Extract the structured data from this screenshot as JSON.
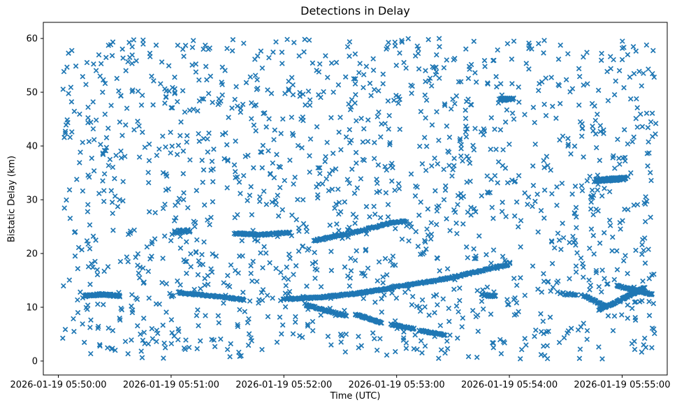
{
  "chart_data": {
    "type": "scatter",
    "title": "Detections in Delay",
    "xlabel": "Time (UTC)",
    "ylabel": "Bistatic Delay (km)",
    "marker": {
      "shape": "x",
      "color": "#1f77b4",
      "half_size_px": 3.2,
      "stroke_px": 1.7
    },
    "frame_color": "#000000",
    "x_axis": {
      "tick_labels": [
        "2026-01-19 05:50:00",
        "2026-01-19 05:51:00",
        "2026-01-19 05:52:00",
        "2026-01-19 05:53:00",
        "2026-01-19 05:54:00",
        "2026-01-19 05:55:00"
      ],
      "tick_seconds": [
        0,
        60,
        120,
        180,
        240,
        300
      ],
      "range_seconds": [
        -8,
        324
      ]
    },
    "y_axis": {
      "tick_labels": [
        "0",
        "10",
        "20",
        "30",
        "40",
        "50",
        "60"
      ],
      "tick_values": [
        0,
        10,
        20,
        30,
        40,
        50,
        60
      ],
      "range_km": [
        -2.6,
        63
      ]
    },
    "noise": {
      "count": 1500,
      "seed": 42,
      "time_range_seconds": [
        2,
        318
      ],
      "delay_range_km": [
        0.4,
        60
      ]
    },
    "tracks": [
      {
        "name": "track-flat-12km-early",
        "points_t_d": [
          [
            14,
            12.15
          ],
          [
            24,
            12.4
          ],
          [
            33,
            12.05
          ]
        ],
        "count": 75,
        "jitter_km": 0.18
      },
      {
        "name": "track-fall-12.7-11.4",
        "points_t_d": [
          [
            64,
            12.7
          ],
          [
            82,
            12.1
          ],
          [
            99,
            11.4
          ]
        ],
        "count": 95,
        "jitter_km": 0.15
      },
      {
        "name": "track-rise-11.5-13.6",
        "points_t_d": [
          [
            120,
            11.5
          ],
          [
            140,
            11.85
          ],
          [
            160,
            12.6
          ],
          [
            178,
            13.6
          ]
        ],
        "count": 210,
        "jitter_km": 0.16
      },
      {
        "name": "track-rise-13.8-18.0",
        "points_t_d": [
          [
            178,
            13.8
          ],
          [
            200,
            14.9
          ],
          [
            218,
            16.2
          ],
          [
            232,
            17.4
          ],
          [
            240,
            18.0
          ]
        ],
        "count": 150,
        "jitter_km": 0.16
      },
      {
        "name": "track-fall-10.4-8.4",
        "points_t_d": [
          [
            132,
            10.4
          ],
          [
            153,
            8.4
          ]
        ],
        "count": 70,
        "jitter_km": 0.14
      },
      {
        "name": "track-fall-8.7-7.1",
        "points_t_d": [
          [
            158,
            8.7
          ],
          [
            172,
            7.1
          ]
        ],
        "count": 50,
        "jitter_km": 0.13
      },
      {
        "name": "track-fall-6.8-6.0",
        "points_t_d": [
          [
            177,
            6.8
          ],
          [
            189,
            6.0
          ]
        ],
        "count": 42,
        "jitter_km": 0.12
      },
      {
        "name": "track-fall-5.7-4.8",
        "points_t_d": [
          [
            192,
            5.7
          ],
          [
            206,
            4.8
          ]
        ],
        "count": 42,
        "jitter_km": 0.12
      },
      {
        "name": "track-rise-22.4-26.0",
        "points_t_d": [
          [
            136,
            22.4
          ],
          [
            152,
            23.5
          ],
          [
            166,
            24.7
          ],
          [
            177,
            25.7
          ],
          [
            185,
            26.0
          ]
        ],
        "count": 130,
        "jitter_km": 0.15
      },
      {
        "name": "cluster-24km",
        "points_t_d": [
          [
            62,
            24.0
          ],
          [
            70,
            24.2
          ]
        ],
        "count": 26,
        "jitter_km": 0.3
      },
      {
        "name": "track-flat-23.7",
        "points_t_d": [
          [
            94,
            23.7
          ],
          [
            108,
            23.5
          ],
          [
            123,
            23.9
          ]
        ],
        "count": 95,
        "jitter_km": 0.16
      },
      {
        "name": "track-flat-33.8",
        "points_t_d": [
          [
            286,
            33.6
          ],
          [
            302,
            34.0
          ]
        ],
        "count": 110,
        "jitter_km": 0.28
      },
      {
        "name": "track-short-48.7",
        "points_t_d": [
          [
            235,
            48.6
          ],
          [
            242,
            48.8
          ]
        ],
        "count": 30,
        "jitter_km": 0.25
      },
      {
        "name": "track-rise-9.6-13.6",
        "points_t_d": [
          [
            288,
            9.6
          ],
          [
            300,
            11.5
          ],
          [
            312,
            13.6
          ]
        ],
        "count": 110,
        "jitter_km": 0.16
      },
      {
        "name": "track-fall-14.0-12.4",
        "points_t_d": [
          [
            297,
            14.0
          ],
          [
            308,
            13.1
          ],
          [
            316,
            12.4
          ]
        ],
        "count": 75,
        "jitter_km": 0.16
      },
      {
        "name": "track-fall-12.1-10.2",
        "points_t_d": [
          [
            280,
            12.1
          ],
          [
            291,
            10.2
          ]
        ],
        "count": 40,
        "jitter_km": 0.15
      },
      {
        "name": "cluster-12.2km-t229",
        "points_t_d": [
          [
            225,
            12.3
          ],
          [
            233,
            12.1
          ]
        ],
        "count": 20,
        "jitter_km": 0.2
      },
      {
        "name": "cluster-12.5km-t271",
        "points_t_d": [
          [
            266,
            12.7
          ],
          [
            276,
            12.2
          ]
        ],
        "count": 16,
        "jitter_km": 0.2
      }
    ]
  }
}
